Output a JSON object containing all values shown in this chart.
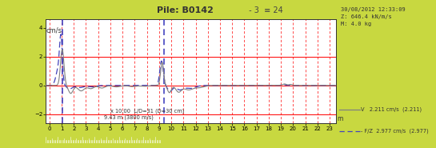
{
  "title_bold": "Pile: B0142",
  "title_suffix": " - 3  ≡ 24",
  "ylabel": "cm/s",
  "bg_color": "#c8d840",
  "plot_bg": "#ffffff",
  "ylim": [
    -2.6,
    4.6
  ],
  "xlim": [
    -0.3,
    23.5
  ],
  "yticks": [
    -2.0,
    0.0,
    2.0,
    4.0
  ],
  "xticks": [
    0,
    1,
    2,
    3,
    4,
    5,
    6,
    7,
    8,
    9,
    10,
    11,
    12,
    13,
    14,
    15,
    16,
    17,
    18,
    19,
    20,
    21,
    22,
    23
  ],
  "red_hlines": [
    0.0,
    2.0,
    -2.0
  ],
  "blue_vlines": [
    1.05,
    9.43
  ],
  "annotation_LD": "x 10.00  L/D=31 (D=30 cm)",
  "annotation_speed": "9.43 m (3800 m/s)",
  "info_text": "30/08/2012 12:33:09\nZ: 646.4 kN/m/s\nM: 4.0 kg",
  "legend_V": "V   2.211 cm/s  (2.211)",
  "legend_FZ": "- F/Z  2.977 cm/s  (2.977)",
  "line_color_V": "#808080",
  "line_color_FZ": "#4444bb"
}
